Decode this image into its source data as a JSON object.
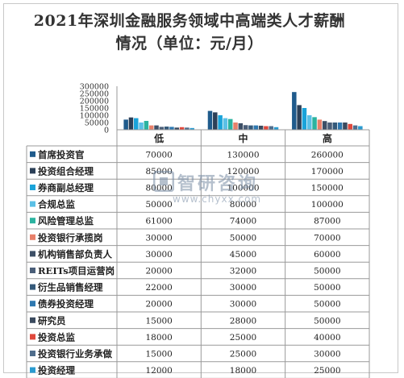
{
  "chart_data": {
    "type": "bar",
    "title": "2021年深圳金融服务领域中高端类人才薪酬情况（单位：元/月）",
    "categories": [
      "低",
      "中",
      "高"
    ],
    "ylim": [
      0,
      300000
    ],
    "yticks": [
      0,
      50000,
      100000,
      150000,
      200000,
      250000,
      300000
    ],
    "grid": false,
    "legend_position": "table-left",
    "series": [
      {
        "name": "首席投资官",
        "values": [
          70000,
          130000,
          260000
        ],
        "color": "#1f5b8c"
      },
      {
        "name": "投资组合经理",
        "values": [
          85000,
          120000,
          170000
        ],
        "color": "#2c4058"
      },
      {
        "name": "券商副总经理",
        "values": [
          80000,
          100000,
          150000
        ],
        "color": "#1aa3d9"
      },
      {
        "name": "合规总监",
        "values": [
          50000,
          80000,
          100000
        ],
        "color": "#5bc0e6"
      },
      {
        "name": "风险管理总监",
        "values": [
          61000,
          74000,
          87000
        ],
        "color": "#2bb3a0"
      },
      {
        "name": "投资银行承揽岗",
        "values": [
          30000,
          50000,
          70000
        ],
        "color": "#e8806a"
      },
      {
        "name": "机构销售部负责人",
        "values": [
          30000,
          45000,
          60000
        ],
        "color": "#3d4f66"
      },
      {
        "name": "REITs项目运营岗",
        "values": [
          20000,
          32000,
          50000
        ],
        "color": "#4a5e78"
      },
      {
        "name": "衍生品销售经理",
        "values": [
          22000,
          30000,
          50000
        ],
        "color": "#355a7a"
      },
      {
        "name": "债券投资经理",
        "values": [
          20000,
          30000,
          50000
        ],
        "color": "#2e78b0"
      },
      {
        "name": "研究员",
        "values": [
          15000,
          28000,
          50000
        ],
        "color": "#3a4a5e"
      },
      {
        "name": "投资总监",
        "values": [
          18000,
          25000,
          40000
        ],
        "color": "#e0483c"
      },
      {
        "name": "投资银行业务承做",
        "values": [
          15000,
          25000,
          30000
        ],
        "color": "#4f6d8c"
      },
      {
        "name": "投资经理",
        "values": [
          12000,
          18000,
          25000
        ],
        "color": "#2a9bd0"
      }
    ]
  },
  "watermark": {
    "text": "智研咨询",
    "url": "www.chyxx.com",
    "color": "#7a8ea6"
  }
}
